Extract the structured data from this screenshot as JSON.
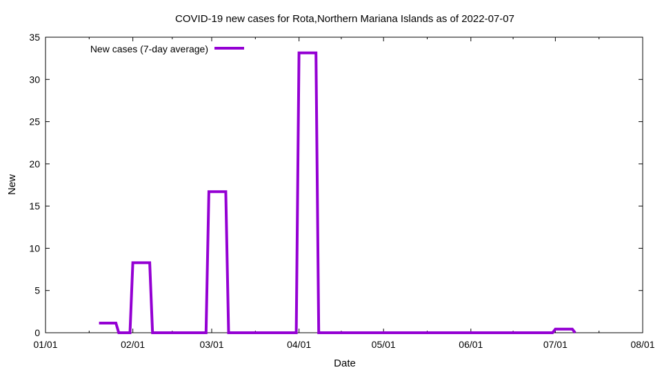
{
  "chart_data": {
    "type": "line",
    "title": "COVID-19 new cases for Rota,Northern Mariana Islands as of 2022-07-07",
    "xlabel": "Date",
    "ylabel": "New",
    "xlim": [
      "2022-01-01",
      "2022-08-01"
    ],
    "ylim": [
      0,
      35
    ],
    "x_ticks": [
      "01/01",
      "02/01",
      "03/01",
      "04/01",
      "05/01",
      "06/01",
      "07/01",
      "08/01"
    ],
    "x_tick_dates": [
      "2022-01-01",
      "2022-02-01",
      "2022-03-01",
      "2022-04-01",
      "2022-05-01",
      "2022-06-01",
      "2022-07-01",
      "2022-08-01"
    ],
    "y_ticks": [
      0,
      5,
      10,
      15,
      20,
      25,
      30,
      35
    ],
    "grid": false,
    "legend_position": "top-left",
    "series": [
      {
        "name": "New cases (7-day average)",
        "color": "#9400d3",
        "points": [
          [
            "2022-01-20",
            1.14
          ],
          [
            "2022-01-26",
            1.14
          ],
          [
            "2022-01-27",
            0
          ],
          [
            "2022-01-31",
            0
          ],
          [
            "2022-02-01",
            8.29
          ],
          [
            "2022-02-07",
            8.29
          ],
          [
            "2022-02-08",
            0
          ],
          [
            "2022-02-27",
            0
          ],
          [
            "2022-02-28",
            16.71
          ],
          [
            "2022-03-06",
            16.71
          ],
          [
            "2022-03-07",
            0
          ],
          [
            "2022-03-31",
            0
          ],
          [
            "2022-04-01",
            33.14
          ],
          [
            "2022-04-07",
            33.14
          ],
          [
            "2022-04-08",
            0
          ],
          [
            "2022-06-30",
            0
          ],
          [
            "2022-07-01",
            0.43
          ],
          [
            "2022-07-07",
            0.43
          ],
          [
            "2022-07-08",
            0
          ]
        ]
      }
    ]
  }
}
